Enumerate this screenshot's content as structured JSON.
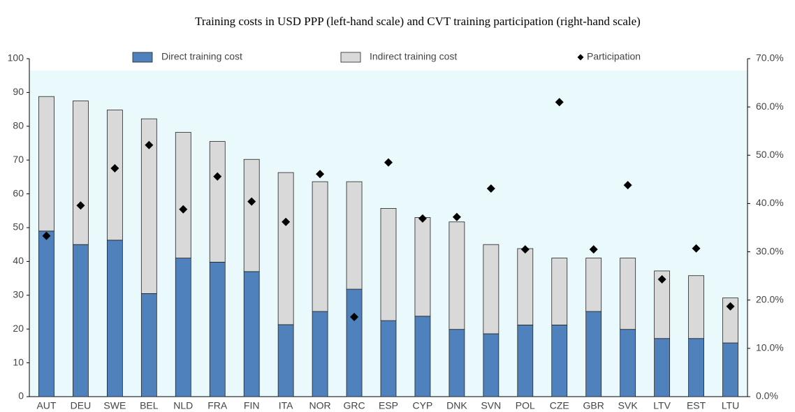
{
  "chart_data": {
    "type": "bar",
    "stacked": true,
    "title": "Training costs in USD PPP (left-hand scale) and CVT training participation (right-hand scale)",
    "categories": [
      "AUT",
      "DEU",
      "SWE",
      "BEL",
      "NLD",
      "FRA",
      "FIN",
      "ITA",
      "NOR",
      "GRC",
      "ESP",
      "CYP",
      "DNK",
      "SVN",
      "POL",
      "CZE",
      "GBR",
      "SVK",
      "LTV",
      "EST",
      "LTU"
    ],
    "series": [
      {
        "name": "Direct training cost",
        "color": "#4f81bd",
        "values": [
          49,
          45,
          46.3,
          30.5,
          41,
          39.8,
          37,
          21.3,
          25.2,
          31.8,
          22.5,
          23.8,
          19.9,
          18.6,
          21.2,
          21.2,
          25.2,
          19.9,
          17.2,
          17.2,
          15.9
        ]
      },
      {
        "name": "Indirect training cost",
        "color": "#d9d9d9",
        "values": [
          39.8,
          42.5,
          38.5,
          51.7,
          37.2,
          35.7,
          33.2,
          45,
          38.4,
          31.8,
          33.2,
          29.2,
          31.8,
          26.4,
          22.6,
          19.8,
          15.8,
          21.1,
          20,
          18.6,
          13.3
        ]
      },
      {
        "name": "Participation",
        "type": "scatter",
        "marker": "diamond",
        "axis": "y2",
        "color": "#000000",
        "values": [
          33.3,
          39.6,
          47.3,
          52.1,
          38.8,
          45.6,
          40.4,
          36.2,
          46.1,
          16.5,
          48.5,
          36.9,
          37.2,
          43.1,
          30.5,
          61,
          30.5,
          43.8,
          24.3,
          30.7,
          18.7
        ]
      }
    ],
    "ylim": [
      0,
      100
    ],
    "yticks": [
      0,
      10,
      20,
      30,
      40,
      50,
      60,
      70,
      80,
      90,
      100
    ],
    "y2lim": [
      0,
      70
    ],
    "y2ticks": [
      {
        "value": 0,
        "label": "0.0%"
      },
      {
        "value": 10,
        "label": "10.0%"
      },
      {
        "value": 20,
        "label": "20.0%"
      },
      {
        "value": 30,
        "label": "30.0%"
      },
      {
        "value": 40,
        "label": "40.0%"
      },
      {
        "value": 50,
        "label": "50.0%"
      },
      {
        "value": 60,
        "label": "60.0%"
      },
      {
        "value": 70,
        "label": "70.0%"
      }
    ],
    "legend": "top",
    "grid": false
  }
}
